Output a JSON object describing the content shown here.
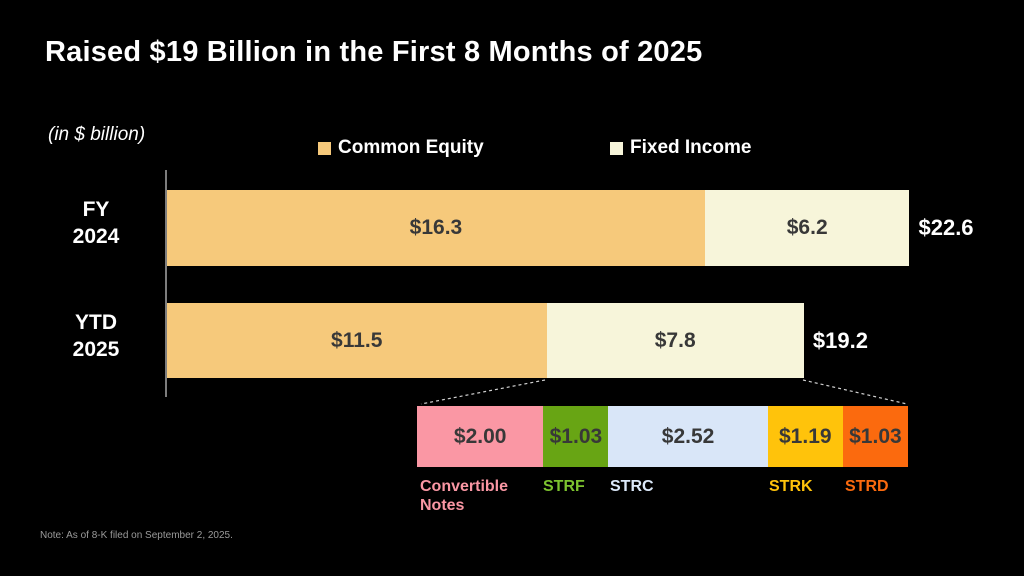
{
  "title": "Raised $19 Billion in the First 8 Months of 2025",
  "units_label": "(in $ billion)",
  "legend": {
    "common_equity": {
      "label": "Common Equity",
      "color": "#F6C97B"
    },
    "fixed_income": {
      "label": "Fixed Income",
      "color": "#F7F5DA"
    }
  },
  "chart_data": {
    "type": "bar",
    "orientation": "horizontal-stacked",
    "categories": [
      "FY\n2024",
      "YTD\n2025"
    ],
    "series": [
      {
        "name": "Common Equity",
        "color": "#F6C97B",
        "values": [
          16.3,
          11.5
        ],
        "value_labels": [
          "$16.3",
          "$11.5"
        ]
      },
      {
        "name": "Fixed Income",
        "color": "#F7F5DA",
        "values": [
          6.2,
          7.8
        ],
        "value_labels": [
          "$6.2",
          "$7.8"
        ]
      }
    ],
    "totals": [
      22.6,
      19.2
    ],
    "total_labels": [
      "$22.6",
      "$19.2"
    ],
    "axis_range": [
      0,
      22.6
    ],
    "legend_position": "top",
    "grid": false,
    "breakdown": {
      "segments": [
        {
          "label": "Convertible Notes",
          "value": 2.0,
          "value_label": "$2.00",
          "color": "#FA97A4",
          "label_color": "#FA97A4"
        },
        {
          "label": "STRF",
          "value": 1.03,
          "value_label": "$1.03",
          "color": "#68A514",
          "label_color": "#7DC32F"
        },
        {
          "label": "STRC",
          "value": 2.52,
          "value_label": "$2.52",
          "color": "#D9E6F8",
          "label_color": "#DCE9FA"
        },
        {
          "label": "STRK",
          "value": 1.19,
          "value_label": "$1.19",
          "color": "#FFC30B",
          "label_color": "#FFC30B"
        },
        {
          "label": "STRD",
          "value": 1.03,
          "value_label": "$1.03",
          "color": "#FB6A0E",
          "label_color": "#FB6A0E"
        }
      ]
    }
  },
  "note": "Note: As of 8-K filed on September 2, 2025."
}
